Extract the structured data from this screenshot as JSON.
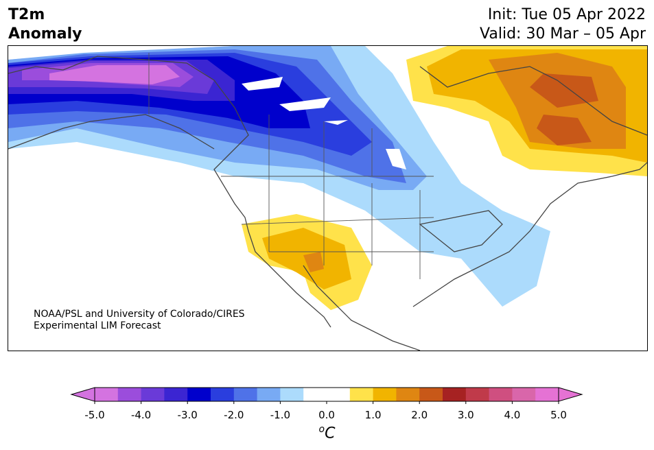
{
  "header": {
    "title_line1": "T2m",
    "title_line2": "Anomaly",
    "init": "Init: Tue 05 Apr 2022",
    "valid": "Valid: 30 Mar – 05 Apr"
  },
  "credit": {
    "line1": "NOAA/PSL and University of Colorado/CIRES",
    "line2": "Experimental LIM Forecast"
  },
  "colorbar": {
    "ticks": [
      "-5.0",
      "-4.0",
      "-3.0",
      "-2.0",
      "-1.0",
      "0.0",
      "1.0",
      "2.0",
      "3.0",
      "4.0",
      "5.0"
    ],
    "unit_base": "C",
    "unit_sup": "o",
    "bins": [
      {
        "color": "#d473e0"
      },
      {
        "color": "#9b4ddc"
      },
      {
        "color": "#6a3ad8"
      },
      {
        "color": "#3b25d2"
      },
      {
        "color": "#0000cc"
      },
      {
        "color": "#2a3ede"
      },
      {
        "color": "#4f72e8"
      },
      {
        "color": "#78aaf4"
      },
      {
        "color": "#acdbfc"
      },
      {
        "color": "#ffffff"
      },
      {
        "color": "#ffffff"
      },
      {
        "color": "#ffe24a"
      },
      {
        "color": "#f1b400"
      },
      {
        "color": "#df8612"
      },
      {
        "color": "#c85818"
      },
      {
        "color": "#a62222"
      },
      {
        "color": "#c03a4a"
      },
      {
        "color": "#cf4f80"
      },
      {
        "color": "#d966aa"
      },
      {
        "color": "#e572d4"
      }
    ],
    "extend_low_color": "#d473e0",
    "extend_high_color": "#e572d4"
  }
}
